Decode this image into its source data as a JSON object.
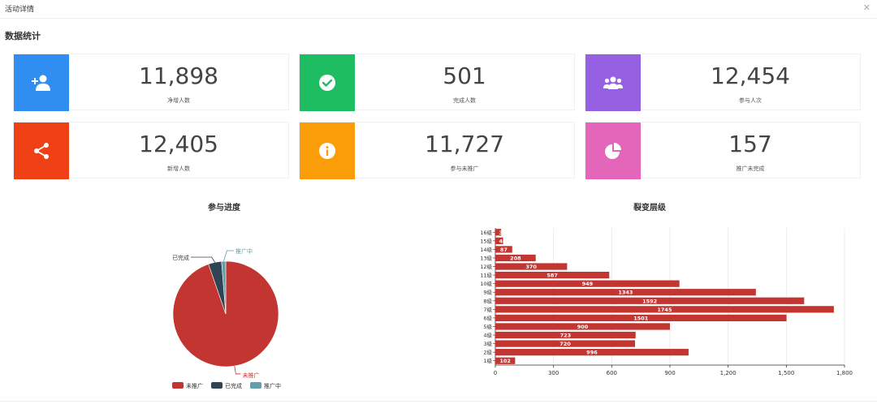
{
  "window": {
    "title": "活动详情"
  },
  "section_title": "数据统计",
  "stats": [
    {
      "value": "11,898",
      "label": "净增人数",
      "color": "#2f8ef0",
      "icon": "add-user-icon"
    },
    {
      "value": "501",
      "label": "完成人数",
      "color": "#1fbd62",
      "icon": "check-circle-icon"
    },
    {
      "value": "12,454",
      "label": "参与人次",
      "color": "#9561e2",
      "icon": "group-icon"
    },
    {
      "value": "12,405",
      "label": "新增人数",
      "color": "#f04015",
      "icon": "share-icon"
    },
    {
      "value": "11,727",
      "label": "参与未推广",
      "color": "#fa9d09",
      "icon": "info-icon"
    },
    {
      "value": "157",
      "label": "推广未完成",
      "color": "#e466ba",
      "icon": "pie-chart-icon"
    }
  ],
  "chart_data": [
    {
      "type": "pie",
      "title": "参与进度",
      "labels": [
        "未推广",
        "已完成",
        "推广中"
      ],
      "values": [
        11727,
        501,
        157
      ],
      "colors": [
        "#c23531",
        "#2f4554",
        "#61a0a8"
      ],
      "legend": [
        "未推广",
        "已完成",
        "推广中"
      ],
      "legend_position": "bottom"
    },
    {
      "type": "bar",
      "orientation": "horizontal",
      "title": "裂变层级",
      "categories": [
        "1级",
        "2级",
        "3级",
        "4级",
        "5级",
        "6级",
        "7级",
        "8级",
        "9级",
        "10级",
        "11级",
        "12级",
        "13级",
        "14级",
        "15级",
        "16级"
      ],
      "values": [
        102,
        996,
        720,
        723,
        900,
        1501,
        1745,
        1592,
        1343,
        949,
        587,
        370,
        208,
        87,
        40,
        30
      ],
      "color": "#c23531",
      "xlim": [
        0,
        1800
      ],
      "xticks": [
        "0",
        "300",
        "600",
        "900",
        "1,200",
        "1,500",
        "1,800"
      ]
    }
  ]
}
